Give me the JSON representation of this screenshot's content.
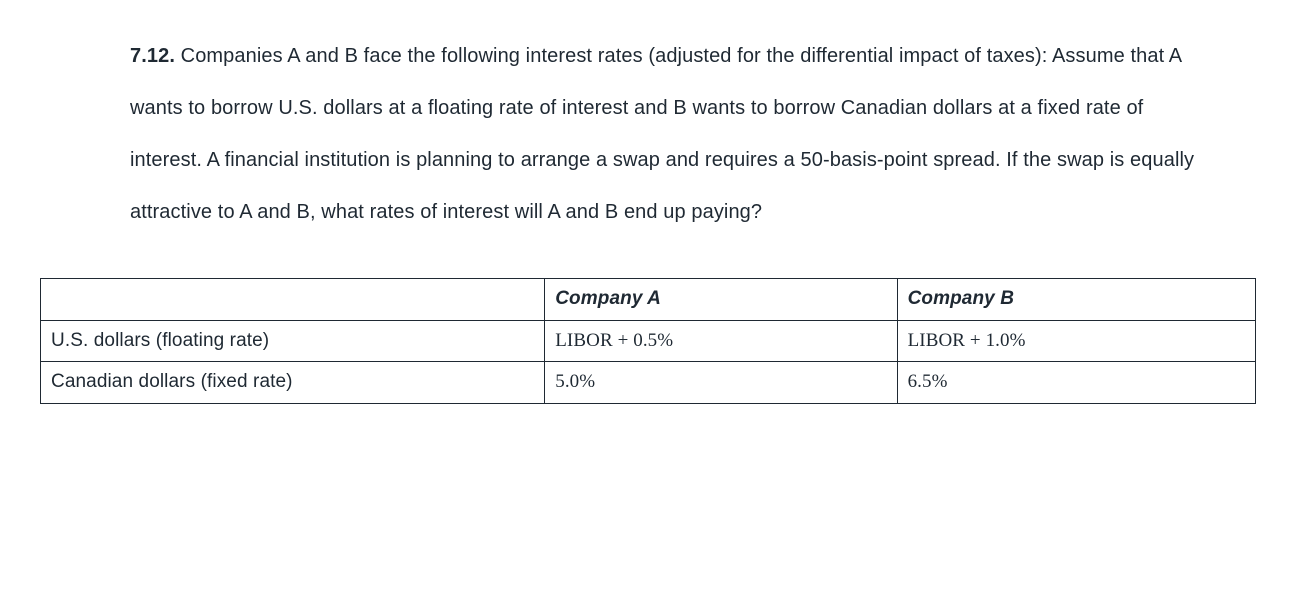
{
  "question": {
    "number": "7.12.",
    "text": "Companies A and B face the following interest rates (adjusted for the differential impact of taxes): Assume that A wants to borrow U.S. dollars at a floating rate of interest and B wants to borrow Canadian dollars at a fixed rate of interest. A financial institution is planning to arrange a swap and requires a 50-basis-point spread. If the swap is equally attractive to A and B, what rates of interest will A and B end up paying?"
  },
  "table": {
    "columns": [
      {
        "label": "Company A"
      },
      {
        "label": "Company B"
      }
    ],
    "rows": [
      {
        "label": "U.S. dollars (floating rate)",
        "company_a": "LIBOR + 0.5%",
        "company_b": "LIBOR + 1.0%"
      },
      {
        "label": "Canadian dollars (fixed rate)",
        "company_a": "5.0%",
        "company_b": "6.5%"
      }
    ]
  }
}
